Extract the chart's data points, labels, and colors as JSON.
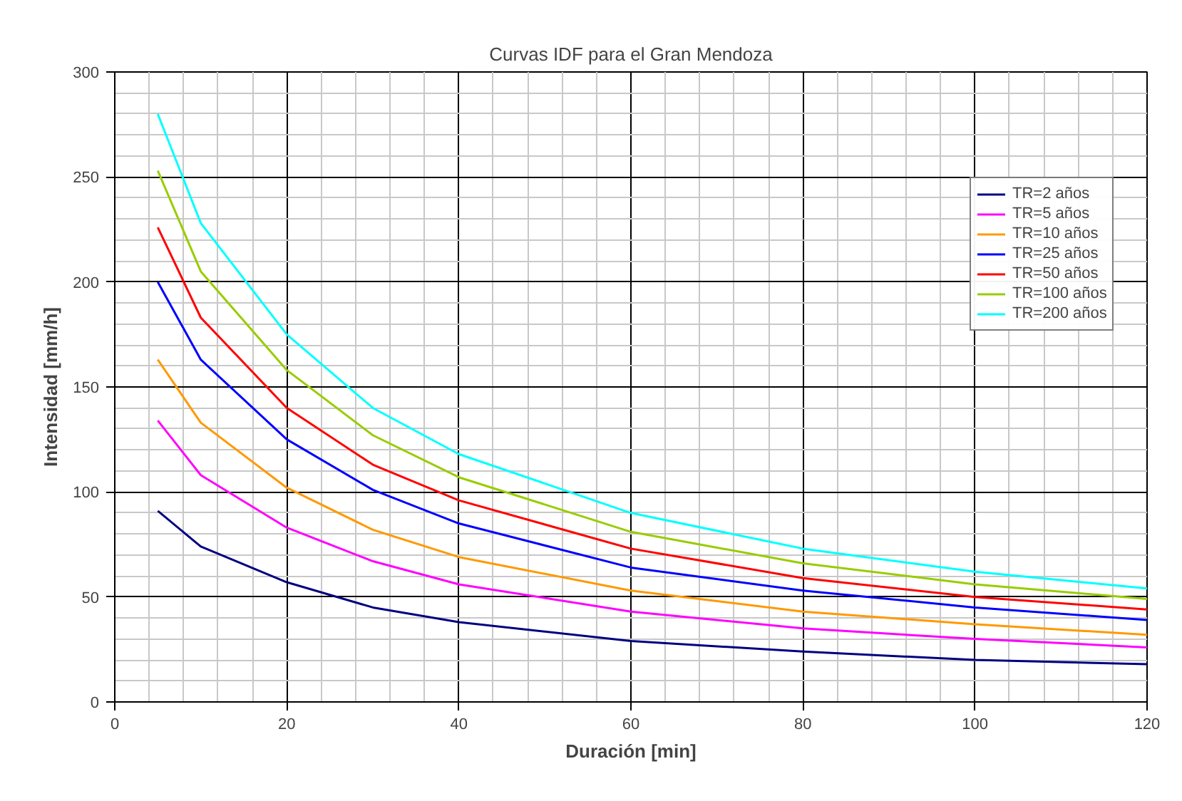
{
  "chart_data": {
    "type": "line",
    "title": "Curvas IDF para el Gran Mendoza",
    "xlabel": "Duración [min]",
    "ylabel": "Intensidad [mm/h]",
    "x": [
      5,
      10,
      20,
      30,
      40,
      60,
      80,
      100,
      120
    ],
    "series": [
      {
        "name": "TR=2 años",
        "color": "#000080",
        "values": [
          91,
          74,
          57,
          45,
          38,
          29,
          24,
          20,
          18
        ]
      },
      {
        "name": "TR=5 años",
        "color": "#ff00ff",
        "values": [
          134,
          108,
          83,
          67,
          56,
          43,
          35,
          30,
          26
        ]
      },
      {
        "name": "TR=10 años",
        "color": "#ff9900",
        "values": [
          163,
          133,
          102,
          82,
          69,
          53,
          43,
          37,
          32
        ]
      },
      {
        "name": "TR=25 años",
        "color": "#0000ff",
        "values": [
          200,
          163,
          125,
          101,
          85,
          64,
          53,
          45,
          39
        ]
      },
      {
        "name": "TR=50 años",
        "color": "#ff0000",
        "values": [
          226,
          183,
          140,
          113,
          96,
          73,
          59,
          50,
          44
        ]
      },
      {
        "name": "TR=100 años",
        "color": "#99cc00",
        "values": [
          253,
          205,
          158,
          127,
          107,
          81,
          66,
          56,
          49
        ]
      },
      {
        "name": "TR=200 años",
        "color": "#00ffff",
        "values": [
          280,
          228,
          175,
          140,
          118,
          90,
          73,
          62,
          54
        ]
      }
    ],
    "xlim": [
      0,
      120
    ],
    "xticks": [
      0,
      20,
      40,
      60,
      80,
      100,
      120
    ],
    "ylim": [
      0,
      300
    ],
    "yticks": [
      0,
      50,
      100,
      150,
      200,
      250,
      300
    ],
    "grid": true,
    "legend": "right",
    "marker": "none",
    "line_style": "solid"
  }
}
